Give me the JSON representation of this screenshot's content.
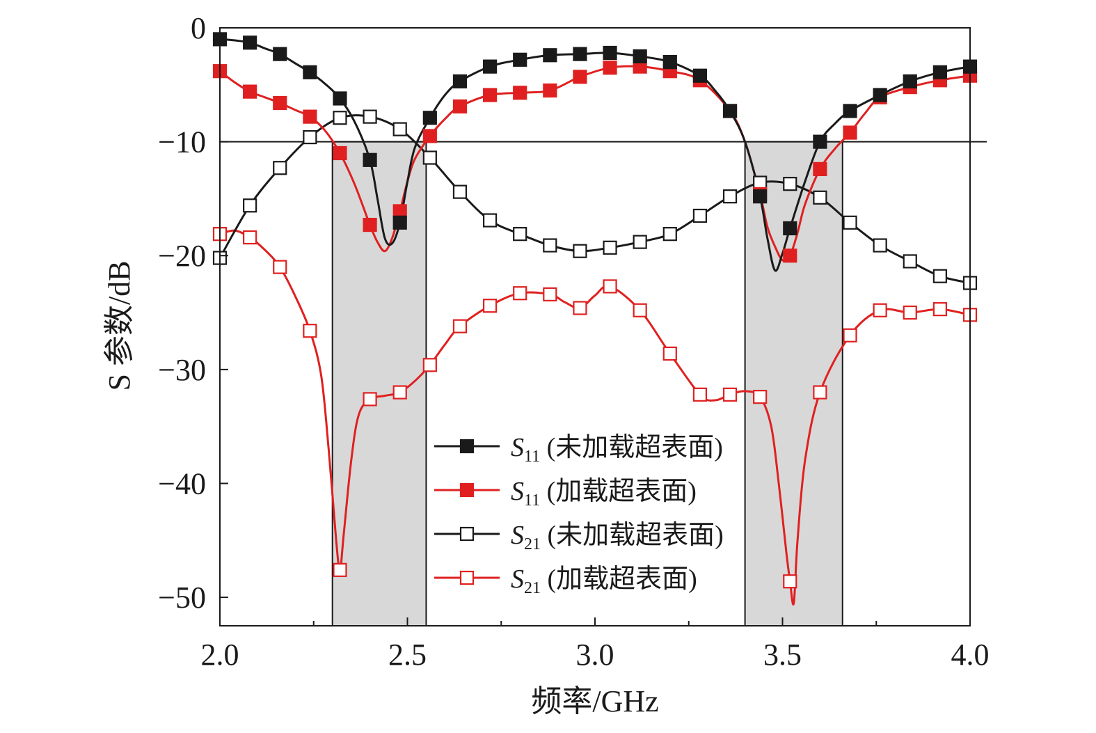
{
  "chart_data": {
    "type": "line",
    "xlabel": "频率/GHz",
    "ylabel": "S 参数/dB",
    "xlim": [
      2.0,
      4.0
    ],
    "ylim": [
      -52.5,
      0
    ],
    "xticks": [
      2.0,
      2.5,
      3.0,
      3.5,
      4.0
    ],
    "xtick_labels": [
      "2.0",
      "2.5",
      "3.0",
      "3.5",
      "4.0"
    ],
    "yticks": [
      0,
      -10,
      -20,
      -30,
      -40,
      -50
    ],
    "ytick_labels": [
      "0",
      "−10",
      "−20",
      "−30",
      "−40",
      "−50"
    ],
    "reference_line": {
      "y": -10
    },
    "bands": [
      {
        "x": [
          2.3,
          2.55
        ],
        "color": "#d8d8d8"
      },
      {
        "x": [
          3.4,
          3.66
        ],
        "color": "#d8d8d8"
      }
    ],
    "grid": false,
    "legend_position": "center",
    "series": [
      {
        "name": "S11 (未加载超表面)",
        "legend": {
          "sym": "S",
          "sub": "11",
          "note": " (未加载超表面)"
        },
        "color": "#1a1a1a",
        "marker": "filled-square",
        "x": [
          2.0,
          2.08,
          2.16,
          2.24,
          2.32,
          2.4,
          2.48,
          2.56,
          2.64,
          2.72,
          2.8,
          2.88,
          2.96,
          3.04,
          3.12,
          3.2,
          3.28,
          3.36,
          3.44,
          3.52,
          3.6,
          3.68,
          3.76,
          3.84,
          3.92,
          4.0
        ],
        "y": [
          -1.0,
          -1.3,
          -2.3,
          -3.9,
          -6.2,
          -11.6,
          -17.1,
          -7.9,
          -4.7,
          -3.4,
          -2.8,
          -2.4,
          -2.3,
          -2.2,
          -2.5,
          -3.0,
          -4.2,
          -7.3,
          -14.8,
          -17.6,
          -10.0,
          -7.3,
          -5.9,
          -4.7,
          -3.9,
          -3.4
        ],
        "curve_x": [
          2.0,
          2.04,
          2.08,
          2.12,
          2.16,
          2.2,
          2.24,
          2.28,
          2.32,
          2.36,
          2.4,
          2.42,
          2.44,
          2.46,
          2.48,
          2.5,
          2.52,
          2.56,
          2.6,
          2.64,
          2.72,
          2.8,
          2.88,
          2.96,
          3.04,
          3.12,
          3.2,
          3.28,
          3.32,
          3.36,
          3.4,
          3.44,
          3.46,
          3.48,
          3.5,
          3.52,
          3.56,
          3.6,
          3.64,
          3.68,
          3.76,
          3.84,
          3.92,
          4.0
        ],
        "curve_y": [
          -1.0,
          -1.1,
          -1.3,
          -1.8,
          -2.3,
          -3.1,
          -3.9,
          -4.9,
          -6.2,
          -8.3,
          -11.6,
          -15.0,
          -18.5,
          -18.9,
          -17.1,
          -13.5,
          -10.5,
          -7.9,
          -5.9,
          -4.7,
          -3.4,
          -2.8,
          -2.4,
          -2.3,
          -2.2,
          -2.5,
          -3.0,
          -4.2,
          -5.5,
          -7.3,
          -10.0,
          -14.8,
          -18.5,
          -21.3,
          -19.8,
          -17.6,
          -13.5,
          -10.0,
          -8.4,
          -7.3,
          -5.9,
          -4.7,
          -3.9,
          -3.4
        ]
      },
      {
        "name": "S11 (加载超表面)",
        "legend": {
          "sym": "S",
          "sub": "11",
          "note": " (加载超表面)"
        },
        "color": "#e02020",
        "marker": "filled-square",
        "x": [
          2.0,
          2.08,
          2.16,
          2.24,
          2.32,
          2.4,
          2.48,
          2.56,
          2.64,
          2.72,
          2.8,
          2.88,
          2.96,
          3.04,
          3.12,
          3.2,
          3.28,
          3.36,
          3.44,
          3.52,
          3.6,
          3.68,
          3.76,
          3.84,
          3.92,
          4.0
        ],
        "y": [
          -3.8,
          -5.6,
          -6.6,
          -7.8,
          -11.0,
          -17.3,
          -16.1,
          -9.5,
          -6.9,
          -5.9,
          -5.7,
          -5.5,
          -4.3,
          -3.5,
          -3.4,
          -3.8,
          -4.6,
          -7.3,
          -14.6,
          -20.0,
          -12.4,
          -9.2,
          -6.1,
          -5.2,
          -4.6,
          -4.2
        ],
        "curve_x": [
          2.0,
          2.04,
          2.08,
          2.12,
          2.16,
          2.2,
          2.24,
          2.28,
          2.32,
          2.36,
          2.4,
          2.42,
          2.44,
          2.46,
          2.48,
          2.5,
          2.52,
          2.56,
          2.6,
          2.64,
          2.72,
          2.8,
          2.88,
          2.96,
          3.04,
          3.12,
          3.2,
          3.28,
          3.36,
          3.4,
          3.44,
          3.46,
          3.48,
          3.5,
          3.52,
          3.54,
          3.56,
          3.6,
          3.64,
          3.68,
          3.72,
          3.76,
          3.84,
          3.92,
          4.0
        ],
        "curve_y": [
          -3.8,
          -4.8,
          -5.6,
          -6.1,
          -6.6,
          -7.2,
          -7.8,
          -9.0,
          -11.0,
          -13.8,
          -17.3,
          -18.8,
          -19.6,
          -18.4,
          -16.1,
          -13.5,
          -11.5,
          -9.5,
          -8.0,
          -6.9,
          -5.9,
          -5.7,
          -5.5,
          -4.3,
          -3.5,
          -3.4,
          -3.8,
          -4.6,
          -7.3,
          -10.0,
          -14.6,
          -17.5,
          -19.2,
          -20.4,
          -20.0,
          -18.0,
          -15.5,
          -12.4,
          -10.6,
          -9.2,
          -7.5,
          -6.1,
          -5.2,
          -4.6,
          -4.2
        ]
      },
      {
        "name": "S21 (未加载超表面)",
        "legend": {
          "sym": "S",
          "sub": "21",
          "note": " (未加载超表面)"
        },
        "color": "#1a1a1a",
        "marker": "open-square",
        "x": [
          2.0,
          2.08,
          2.16,
          2.24,
          2.32,
          2.4,
          2.48,
          2.56,
          2.64,
          2.72,
          2.8,
          2.88,
          2.96,
          3.04,
          3.12,
          3.2,
          3.28,
          3.36,
          3.44,
          3.52,
          3.6,
          3.68,
          3.76,
          3.84,
          3.92,
          4.0
        ],
        "y": [
          -20.2,
          -15.6,
          -12.3,
          -9.6,
          -7.9,
          -7.8,
          -8.9,
          -11.4,
          -14.4,
          -16.9,
          -18.1,
          -19.1,
          -19.6,
          -19.3,
          -18.8,
          -18.1,
          -16.5,
          -14.8,
          -13.6,
          -13.7,
          -14.9,
          -17.1,
          -19.1,
          -20.5,
          -21.8,
          -22.4
        ],
        "curve_x": [
          2.0,
          2.08,
          2.16,
          2.24,
          2.32,
          2.4,
          2.48,
          2.56,
          2.64,
          2.72,
          2.8,
          2.88,
          2.96,
          3.04,
          3.12,
          3.2,
          3.28,
          3.36,
          3.44,
          3.52,
          3.6,
          3.68,
          3.76,
          3.84,
          3.92,
          4.0
        ],
        "curve_y": [
          -20.2,
          -15.6,
          -12.3,
          -9.6,
          -7.9,
          -7.8,
          -8.9,
          -11.4,
          -14.4,
          -16.9,
          -18.1,
          -19.1,
          -19.6,
          -19.3,
          -18.8,
          -18.1,
          -16.5,
          -14.8,
          -13.6,
          -13.7,
          -14.9,
          -17.1,
          -19.1,
          -20.5,
          -21.8,
          -22.4
        ]
      },
      {
        "name": "S21 (加载超表面)",
        "legend": {
          "sym": "S",
          "sub": "21",
          "note": " (加载超表面)"
        },
        "color": "#e02020",
        "marker": "open-square",
        "x": [
          2.0,
          2.08,
          2.16,
          2.24,
          2.32,
          2.4,
          2.48,
          2.56,
          2.64,
          2.72,
          2.8,
          2.88,
          2.96,
          3.04,
          3.12,
          3.2,
          3.28,
          3.36,
          3.44,
          3.52,
          3.6,
          3.68,
          3.76,
          3.84,
          3.92,
          4.0
        ],
        "y": [
          -18.1,
          -18.4,
          -21.0,
          -26.6,
          -47.6,
          -32.6,
          -32.0,
          -29.6,
          -26.2,
          -24.4,
          -23.3,
          -23.4,
          -24.6,
          -22.7,
          -24.8,
          -28.6,
          -32.2,
          -32.2,
          -32.4,
          -48.6,
          -32.0,
          -27.0,
          -24.8,
          -25.0,
          -24.7,
          -25.2
        ],
        "curve_x": [
          2.0,
          2.04,
          2.08,
          2.12,
          2.16,
          2.2,
          2.24,
          2.27,
          2.29,
          2.31,
          2.32,
          2.33,
          2.35,
          2.37,
          2.4,
          2.44,
          2.48,
          2.52,
          2.56,
          2.6,
          2.64,
          2.72,
          2.8,
          2.88,
          2.92,
          2.96,
          3.0,
          3.04,
          3.12,
          3.2,
          3.28,
          3.32,
          3.36,
          3.4,
          3.44,
          3.47,
          3.49,
          3.51,
          3.52,
          3.53,
          3.54,
          3.56,
          3.6,
          3.68,
          3.76,
          3.84,
          3.92,
          4.0
        ],
        "curve_y": [
          -18.1,
          -17.8,
          -18.4,
          -19.5,
          -21.0,
          -23.5,
          -26.6,
          -30.5,
          -37.0,
          -45.0,
          -47.6,
          -44.5,
          -38.0,
          -34.0,
          -32.6,
          -32.3,
          -32.0,
          -31.0,
          -29.6,
          -27.8,
          -26.2,
          -24.4,
          -23.3,
          -23.4,
          -24.1,
          -24.6,
          -23.5,
          -22.7,
          -24.8,
          -28.6,
          -32.2,
          -32.7,
          -32.2,
          -31.9,
          -32.4,
          -35.0,
          -40.0,
          -46.0,
          -48.6,
          -50.5,
          -45.0,
          -38.0,
          -32.0,
          -27.0,
          -24.8,
          -25.0,
          -24.7,
          -25.2
        ]
      }
    ]
  }
}
